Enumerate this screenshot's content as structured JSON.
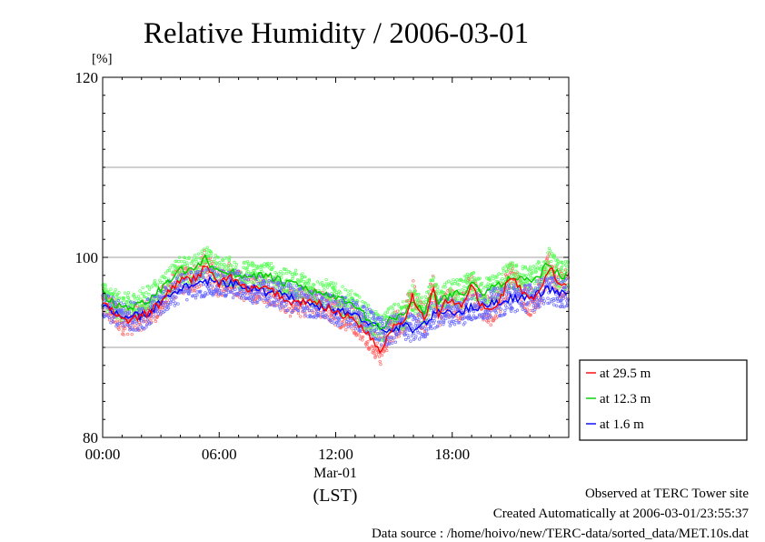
{
  "chart_data": {
    "type": "line",
    "title": "Relative Humidity / 2006-03-01",
    "ylabel": "[%]",
    "xlabel": "(LST)",
    "date_label": "Mar-01",
    "ylim": [
      80,
      120
    ],
    "yticks": [
      80,
      100,
      120
    ],
    "ygrid": [
      90,
      100,
      110
    ],
    "xlim_hours": [
      0,
      24
    ],
    "xticks": [
      {
        "hour": 0,
        "label": "00:00"
      },
      {
        "hour": 6,
        "label": "06:00"
      },
      {
        "hour": 12,
        "label": "12:00"
      },
      {
        "hour": 18,
        "label": "18:00"
      }
    ],
    "grid": true,
    "legend_position": "right-bottom",
    "series": [
      {
        "name": "at 29.5 m",
        "color": "#ff0000",
        "scatter_color": "#ff6a6a",
        "x": [
          0,
          0.5,
          1,
          1.5,
          2,
          2.5,
          3,
          3.5,
          4,
          4.5,
          5,
          5.3,
          5.6,
          6,
          6.5,
          7,
          7.5,
          8,
          8.5,
          9,
          9.5,
          10,
          10.5,
          11,
          11.5,
          12,
          12.5,
          13,
          13.5,
          14,
          14.3,
          14.6,
          15,
          15.5,
          16,
          16.2,
          16.6,
          17,
          17.3,
          17.6,
          18,
          18.5,
          19,
          19.5,
          20,
          20.5,
          21,
          21.5,
          22,
          22.5,
          23,
          23.5
        ],
        "y": [
          95,
          94,
          93,
          93,
          93.5,
          94,
          95,
          96.5,
          97.5,
          97.5,
          98,
          99.5,
          98,
          97,
          98,
          97,
          96.5,
          96.5,
          96.5,
          96,
          95,
          95,
          95,
          95,
          94.5,
          94,
          93.5,
          93,
          92,
          90.5,
          89.5,
          91,
          92.5,
          93,
          96,
          94,
          93,
          97,
          93.5,
          95,
          95,
          94.5,
          97,
          94.5,
          94,
          95.5,
          98,
          96.5,
          95,
          96,
          99,
          97
        ]
      },
      {
        "name": "at 12.3 m",
        "color": "#00cc00",
        "scatter_color": "#5cff5c",
        "x": [
          0,
          0.5,
          1,
          1.5,
          2,
          2.5,
          3,
          3.5,
          4,
          4.5,
          5,
          5.3,
          5.6,
          6,
          6.5,
          7,
          7.5,
          8,
          8.5,
          9,
          9.5,
          10,
          10.5,
          11,
          11.5,
          12,
          12.5,
          13,
          13.5,
          14,
          14.3,
          14.6,
          15,
          15.5,
          16,
          16.2,
          16.6,
          17,
          17.3,
          17.6,
          18,
          18.5,
          19,
          19.5,
          20,
          20.5,
          21,
          21.5,
          22,
          22.5,
          23,
          23.5
        ],
        "y": [
          96,
          95,
          94.5,
          94.5,
          95,
          95.5,
          96.5,
          97.5,
          98.5,
          98.5,
          99,
          100,
          99,
          98.5,
          98.5,
          98,
          98,
          98,
          98,
          97.5,
          97,
          97,
          96.5,
          96,
          96,
          95.5,
          95,
          94.5,
          93.5,
          92.5,
          92,
          92.5,
          93.5,
          93.5,
          95.5,
          94.5,
          94,
          96.5,
          95,
          95.5,
          96,
          96,
          97,
          96,
          96.5,
          97,
          98,
          97.5,
          97.5,
          98,
          99.5,
          98
        ]
      },
      {
        "name": "at 1.6 m",
        "color": "#0000ff",
        "scatter_color": "#6a6aff",
        "x": [
          0,
          0.5,
          1,
          1.5,
          2,
          2.5,
          3,
          3.5,
          4,
          4.5,
          5,
          5.5,
          6,
          6.5,
          7,
          7.5,
          8,
          8.5,
          9,
          9.5,
          10,
          10.5,
          11,
          11.5,
          12,
          12.5,
          13,
          13.5,
          14,
          14.5,
          15,
          15.5,
          16,
          16.5,
          17,
          17.5,
          18,
          18.5,
          19,
          19.5,
          20,
          20.5,
          21,
          21.5,
          22,
          22.5,
          23,
          23.5
        ],
        "y": [
          94.5,
          94,
          93.5,
          93.5,
          93.5,
          94,
          95,
          96,
          96.5,
          97,
          97,
          97.5,
          97,
          97,
          97,
          96.5,
          96.5,
          96,
          96,
          95.5,
          95.5,
          95,
          94.5,
          94.5,
          94,
          94,
          93.5,
          93,
          92.5,
          91.5,
          92,
          92.5,
          92,
          92.5,
          93.5,
          94,
          94,
          94,
          94.5,
          94.5,
          95,
          95,
          95.5,
          95.5,
          95.5,
          96,
          96.5,
          96
        ]
      }
    ]
  },
  "footer": {
    "line1": "Observed at TERC Tower site",
    "line2": "Created Automatically at 2006-03-01/23:55:37",
    "line3": "Data source : /home/hoivo/new/TERC-data/sorted_data/MET.10s.dat"
  }
}
